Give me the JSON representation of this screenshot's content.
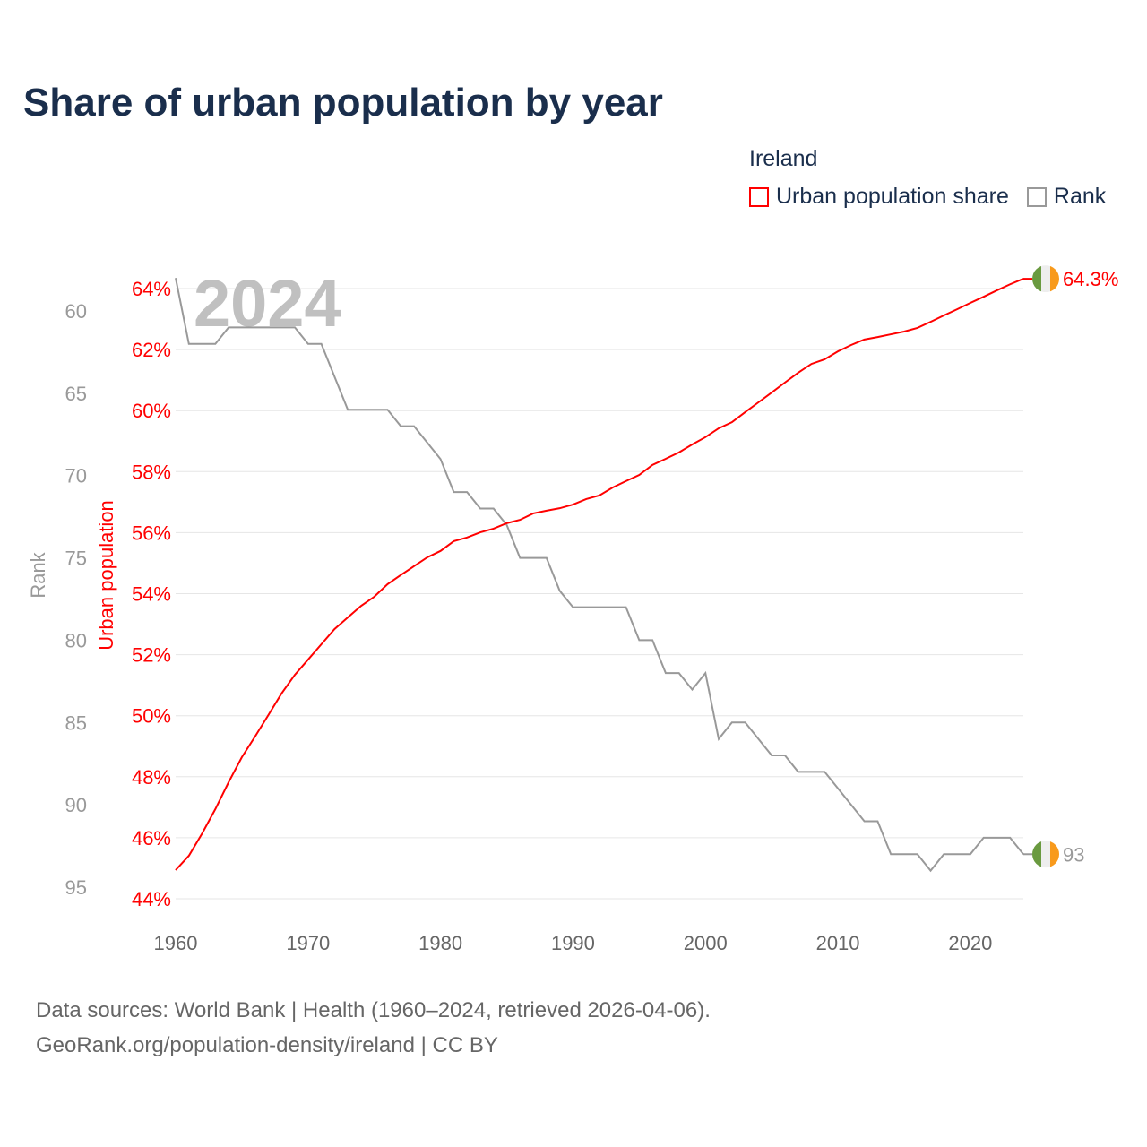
{
  "title": "Share of urban population by year",
  "legend": {
    "title": "Ireland",
    "items": [
      {
        "label": "Urban population share",
        "color": "#ff0000"
      },
      {
        "label": "Rank",
        "color": "#999999"
      }
    ]
  },
  "source": {
    "line1": "Data sources: World Bank | Health (1960–2024, retrieved 2026-04-06).",
    "line2": "GeoRank.org/population-density/ireland | CC BY"
  },
  "chart_data": {
    "type": "line",
    "title": "Share of urban population by year",
    "watermark_year": "2024",
    "x": [
      1960,
      1961,
      1962,
      1963,
      1964,
      1965,
      1966,
      1967,
      1968,
      1969,
      1970,
      1971,
      1972,
      1973,
      1974,
      1975,
      1976,
      1977,
      1978,
      1979,
      1980,
      1981,
      1982,
      1983,
      1984,
      1985,
      1986,
      1987,
      1988,
      1989,
      1990,
      1991,
      1992,
      1993,
      1994,
      1995,
      1996,
      1997,
      1998,
      1999,
      2000,
      2001,
      2002,
      2003,
      2004,
      2005,
      2006,
      2007,
      2008,
      2009,
      2010,
      2011,
      2012,
      2013,
      2014,
      2015,
      2016,
      2017,
      2018,
      2019,
      2020,
      2021,
      2022,
      2023,
      2024
    ],
    "xlim": [
      1960,
      2024
    ],
    "xticks": [
      "1960",
      "1970",
      "1980",
      "1990",
      "2000",
      "2010",
      "2020"
    ],
    "series": [
      {
        "name": "Urban population share",
        "axis": "right-inner",
        "ylabel": "Urban population",
        "color": "#ff0000",
        "values": [
          44.94,
          45.41,
          46.14,
          46.94,
          47.82,
          48.64,
          49.32,
          50.02,
          50.73,
          51.34,
          51.84,
          52.34,
          52.84,
          53.22,
          53.6,
          53.9,
          54.31,
          54.61,
          54.9,
          55.19,
          55.4,
          55.72,
          55.84,
          56.01,
          56.13,
          56.31,
          56.42,
          56.63,
          56.72,
          56.8,
          56.92,
          57.1,
          57.22,
          57.48,
          57.69,
          57.89,
          58.22,
          58.42,
          58.63,
          58.89,
          59.13,
          59.42,
          59.62,
          59.95,
          60.27,
          60.59,
          60.92,
          61.24,
          61.53,
          61.68,
          61.94,
          62.15,
          62.33,
          62.41,
          62.5,
          62.59,
          62.71,
          62.91,
          63.12,
          63.32,
          63.53,
          63.73,
          63.94,
          64.14,
          64.32
        ],
        "ylim": [
          44,
          64
        ],
        "yticks": [
          "44%",
          "46%",
          "48%",
          "50%",
          "52%",
          "54%",
          "56%",
          "58%",
          "60%",
          "62%",
          "64%"
        ],
        "end_label": "64.3%"
      },
      {
        "name": "Rank",
        "axis": "left",
        "ylabel": "Rank",
        "color": "#999999",
        "values": [
          58,
          62,
          62,
          62,
          61,
          61,
          61,
          61,
          61,
          61,
          62,
          62,
          64,
          66,
          66,
          66,
          66,
          67,
          67,
          68,
          69,
          71,
          71,
          72,
          72,
          73,
          75,
          75,
          75,
          77,
          78,
          78,
          78,
          78,
          78,
          80,
          80,
          82,
          82,
          83,
          82,
          86,
          85,
          85,
          86,
          87,
          87,
          88,
          88,
          88,
          89,
          90,
          91,
          91,
          93,
          93,
          93,
          94,
          93,
          93,
          93,
          92,
          92,
          92,
          93
        ],
        "ylim": [
          60,
          95
        ],
        "yticks": [
          "60",
          "65",
          "70",
          "75",
          "80",
          "85",
          "90",
          "95"
        ],
        "inverted": true,
        "end_label": "93"
      }
    ],
    "grid": true,
    "legend_position": "top-right"
  }
}
